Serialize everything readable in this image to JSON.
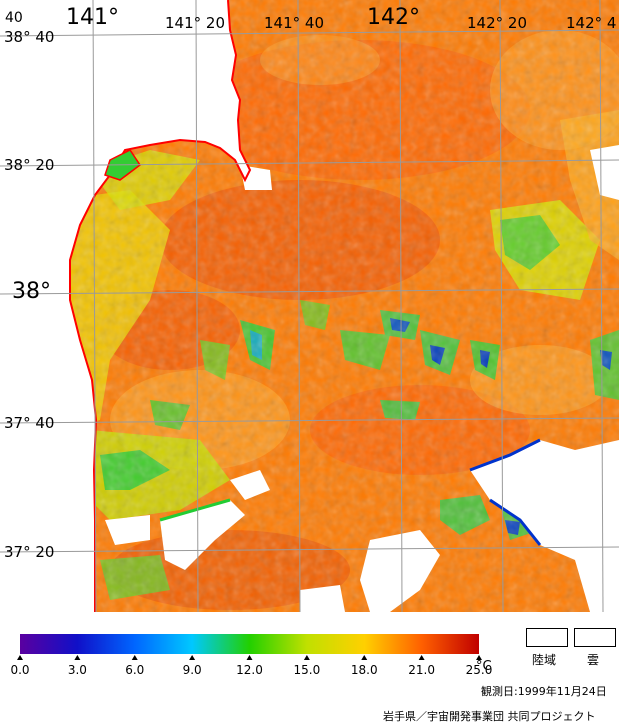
{
  "map": {
    "lon_labels": [
      "141°",
      "141° 20",
      "141° 40",
      "142°",
      "142° 20",
      "142° 4"
    ],
    "lat_labels": [
      "38° 40",
      "38° 20",
      "38°",
      "37° 40",
      "37° 20"
    ],
    "corner_label": "40",
    "colors": {
      "coast": "#ff0000",
      "grid": "#9a9a9a",
      "sea_warm": "#ff6a00",
      "sea_mid": "#ff9a00",
      "sea_cool": "#f5e100",
      "sea_green": "#33cc33",
      "sea_cyan": "#11bbcc",
      "sea_blue": "#0033cc",
      "cloud": "#ffffff"
    }
  },
  "colorbar": {
    "ticks": [
      "0.0",
      "3.0",
      "6.0",
      "9.0",
      "12.0",
      "15.0",
      "18.0",
      "21.0",
      "25.0"
    ],
    "unit": "°C",
    "stops": [
      "#5a00a0",
      "#1010c8",
      "#0066ff",
      "#00c8ff",
      "#22d000",
      "#c0e000",
      "#ffd000",
      "#ff6000",
      "#c00000"
    ]
  },
  "legend": {
    "land_label": "陸域",
    "cloud_label": "雲"
  },
  "observation": {
    "date_text": "観測日:1999年11月24日"
  },
  "credit": {
    "text": "岩手県／宇宙開発事業団 共同プロジェクト"
  }
}
